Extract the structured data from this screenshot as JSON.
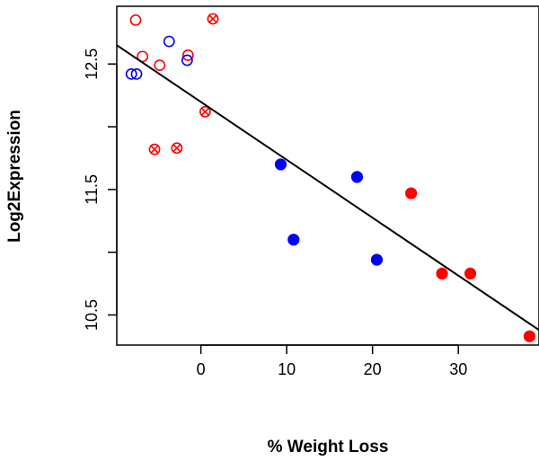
{
  "chart_data": {
    "type": "scatter",
    "title": "",
    "xlabel": "% Weight Loss",
    "ylabel": "Log2Expression",
    "xlim": [
      -9.8,
      39.4
    ],
    "ylim": [
      10.26,
      12.96
    ],
    "x_ticks": [
      0,
      10,
      20,
      30
    ],
    "y_ticks": [
      10.5,
      11.5,
      12.5
    ],
    "y_tick_labels": [
      "10.5",
      "11.5",
      "12.5"
    ],
    "grid": false,
    "legend": "none",
    "colors": {
      "red": "#ff0000",
      "blue": "#0000ff",
      "line": "#000000"
    },
    "fit_line": {
      "x": [
        -9.8,
        39.4
      ],
      "y": [
        12.65,
        10.38
      ]
    },
    "series": [
      {
        "color": "red",
        "marker": "open-circle",
        "points": [
          [
            -7.6,
            12.85
          ],
          [
            -6.8,
            12.56
          ],
          [
            -4.8,
            12.49
          ],
          [
            -1.5,
            12.57
          ]
        ]
      },
      {
        "color": "blue",
        "marker": "open-circle",
        "points": [
          [
            -8.1,
            12.42
          ],
          [
            -7.5,
            12.42
          ],
          [
            -3.7,
            12.68
          ],
          [
            -1.6,
            12.53
          ]
        ]
      },
      {
        "color": "red",
        "marker": "crossed-circle",
        "points": [
          [
            1.4,
            12.86
          ],
          [
            0.5,
            12.12
          ],
          [
            -5.4,
            11.82
          ],
          [
            -2.8,
            11.83
          ]
        ]
      },
      {
        "color": "blue",
        "marker": "filled-circle",
        "points": [
          [
            9.3,
            11.7
          ],
          [
            18.2,
            11.6
          ],
          [
            10.8,
            11.1
          ],
          [
            20.5,
            10.94
          ]
        ]
      },
      {
        "color": "red",
        "marker": "filled-circle",
        "points": [
          [
            24.5,
            11.47
          ],
          [
            28.1,
            10.83
          ],
          [
            31.4,
            10.83
          ],
          [
            38.3,
            10.33
          ]
        ]
      }
    ]
  }
}
